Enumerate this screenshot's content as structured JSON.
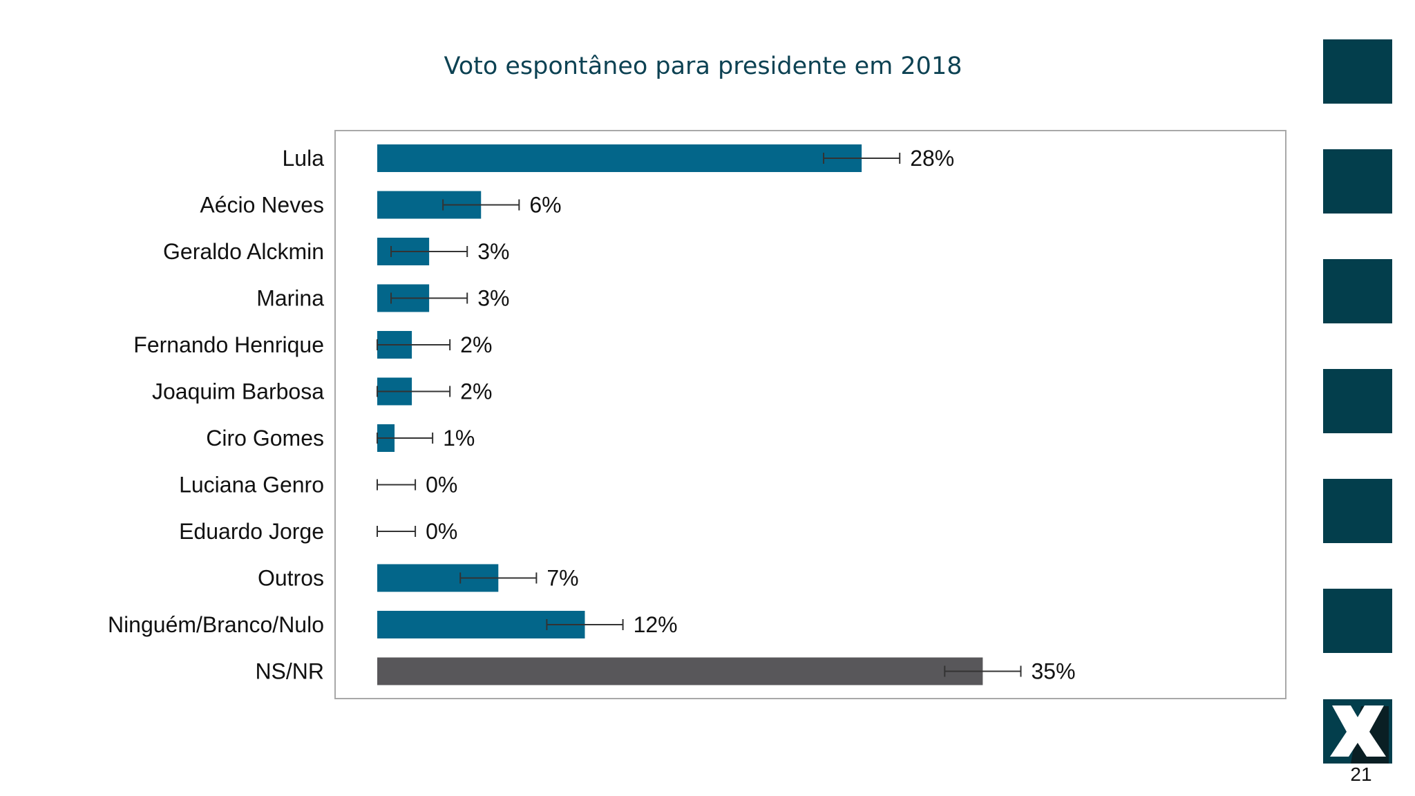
{
  "chart_data": {
    "type": "bar",
    "orientation": "horizontal",
    "title": "Voto espontâneo para presidente em 2018",
    "categories": [
      "Lula",
      "Aécio Neves",
      "Geraldo Alckmin",
      "Marina",
      "Fernando Henrique",
      "Joaquim Barbosa",
      "Ciro Gomes",
      "Luciana Genro",
      "Eduardo Jorge",
      "Outros",
      "Ninguém/Branco/Nulo",
      "NS/NR"
    ],
    "values": [
      28,
      6,
      3,
      3,
      2,
      2,
      1,
      0,
      0,
      7,
      12,
      35
    ],
    "value_labels": [
      "28%",
      "6%",
      "3%",
      "3%",
      "2%",
      "2%",
      "1%",
      "0%",
      "0%",
      "7%",
      "12%",
      "35%"
    ],
    "error_margin": 2.2,
    "xlim": [
      0,
      40
    ],
    "grid": false,
    "colors": {
      "default": "#03668a",
      "highlight": "#58575a",
      "highlight_category": "NS/NR"
    }
  },
  "sidebar": {
    "square_color": "#033e4c",
    "square_count": 6,
    "logo": "X",
    "page_number": "21"
  }
}
